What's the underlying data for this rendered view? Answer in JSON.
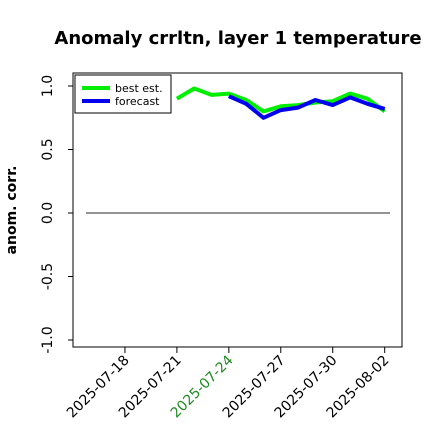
{
  "chart_data": {
    "type": "line",
    "title": "Anomaly crrltn, layer 1 temperature",
    "ylabel": "anom. corr.",
    "xlabel": "",
    "ylim": [
      -1.0,
      1.0
    ],
    "yticks": [
      "-1.0",
      "-0.5",
      "0.0",
      "0.5",
      "1.0"
    ],
    "ytick_values": [
      -1.0,
      -0.5,
      0.0,
      0.5,
      1.0
    ],
    "xticks": [
      "2025-07-18",
      "2025-07-21",
      "2025-07-24",
      "2025-07-27",
      "2025-07-30",
      "2025-08-02"
    ],
    "xtick_highlight_color": "#228b22",
    "xtick_highlight": "2025-07-24",
    "x_range": [
      "2025-07-15",
      "2025-08-03"
    ],
    "reference_line": 0.0,
    "grid": false,
    "legend_position": "top-left",
    "series": [
      {
        "name": "best est.",
        "color": "#00ee00",
        "x": [
          "2025-07-21",
          "2025-07-22",
          "2025-07-23",
          "2025-07-24",
          "2025-07-25",
          "2025-07-26",
          "2025-07-27",
          "2025-07-28",
          "2025-07-29",
          "2025-07-30",
          "2025-07-31",
          "2025-08-01",
          "2025-08-02"
        ],
        "values": [
          0.9,
          0.98,
          0.93,
          0.94,
          0.89,
          0.8,
          0.84,
          0.85,
          0.87,
          0.88,
          0.94,
          0.9,
          0.8
        ]
      },
      {
        "name": "forecast",
        "color": "#0000ee",
        "x": [
          "2025-07-24",
          "2025-07-25",
          "2025-07-26",
          "2025-07-27",
          "2025-07-28",
          "2025-07-29",
          "2025-07-30",
          "2025-07-31",
          "2025-08-01",
          "2025-08-02"
        ],
        "values": [
          0.92,
          0.86,
          0.75,
          0.81,
          0.83,
          0.89,
          0.85,
          0.91,
          0.86,
          0.82
        ]
      }
    ]
  }
}
